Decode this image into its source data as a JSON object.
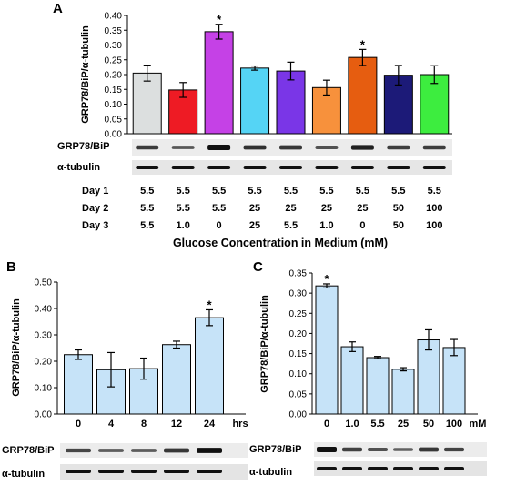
{
  "colors": {
    "A_bars": [
      "#dcdfdf",
      "#ee1b24",
      "#c541e6",
      "#55d4f5",
      "#7a36e7",
      "#f7913c",
      "#e65d10",
      "#1c1a78",
      "#3ded3f"
    ],
    "BC_bar": "#c6e3f8",
    "error": "#000000"
  },
  "chart_data": [
    {
      "panel": "A",
      "type": "bar",
      "ylabel": "GRP78/BiP/α-tubulin",
      "ylim": [
        0,
        0.4
      ],
      "yticks": [
        "0.00",
        "0.05",
        "0.10",
        "0.15",
        "0.20",
        "0.25",
        "0.30",
        "0.35",
        "0.40"
      ],
      "values": [
        0.205,
        0.148,
        0.345,
        0.222,
        0.212,
        0.156,
        0.258,
        0.198,
        0.2
      ],
      "errors": [
        0.027,
        0.025,
        0.025,
        0.007,
        0.03,
        0.025,
        0.027,
        0.033,
        0.03
      ],
      "significant": [
        false,
        false,
        true,
        false,
        false,
        false,
        true,
        false,
        false
      ],
      "star_label": "*",
      "conditions": [
        {
          "label": "Day 1",
          "values": [
            "5.5",
            "5.5",
            "5.5",
            "5.5",
            "5.5",
            "5.5",
            "5.5",
            "5.5",
            "5.5"
          ]
        },
        {
          "label": "Day 2",
          "values": [
            "5.5",
            "5.5",
            "5.5",
            "25",
            "25",
            "25",
            "25",
            "50",
            "100"
          ]
        },
        {
          "label": "Day 3",
          "values": [
            "5.5",
            "1.0",
            "0",
            "25",
            "5.5",
            "1.0",
            "0",
            "50",
            "100"
          ]
        }
      ],
      "xlabel": "Glucose Concentration in Medium (mM)",
      "blots": [
        "GRP78/BiP",
        "α-tubulin"
      ]
    },
    {
      "panel": "B",
      "type": "bar",
      "ylabel": "GRP78/BiP/α-tubulin",
      "ylim": [
        0,
        0.5
      ],
      "yticks": [
        "0.00",
        "0.10",
        "0.20",
        "0.30",
        "0.40",
        "0.50"
      ],
      "categories": [
        "0",
        "4",
        "8",
        "12",
        "24"
      ],
      "unit": "hrs",
      "values": [
        0.225,
        0.168,
        0.172,
        0.263,
        0.365
      ],
      "errors": [
        0.018,
        0.065,
        0.04,
        0.013,
        0.03
      ],
      "significant": [
        false,
        false,
        false,
        false,
        true
      ],
      "star_label": "*",
      "blots": [
        "GRP78/BiP",
        "α-tubulin"
      ]
    },
    {
      "panel": "C",
      "type": "bar",
      "ylabel": "GRP78/BiP/α-tubulin",
      "ylim": [
        0,
        0.35
      ],
      "yticks": [
        "0.00",
        "0.05",
        "0.10",
        "0.15",
        "0.20",
        "0.25",
        "0.30",
        "0.35"
      ],
      "categories": [
        "0",
        "1.0",
        "5.5",
        "25",
        "50",
        "100"
      ],
      "unit": "mM",
      "values": [
        0.318,
        0.167,
        0.14,
        0.111,
        0.184,
        0.165
      ],
      "errors": [
        0.005,
        0.012,
        0.003,
        0.004,
        0.025,
        0.02
      ],
      "significant": [
        true,
        false,
        false,
        false,
        false,
        false
      ],
      "star_label": "*",
      "blots": [
        "GRP78/BiP",
        "α-tubulin"
      ]
    }
  ]
}
